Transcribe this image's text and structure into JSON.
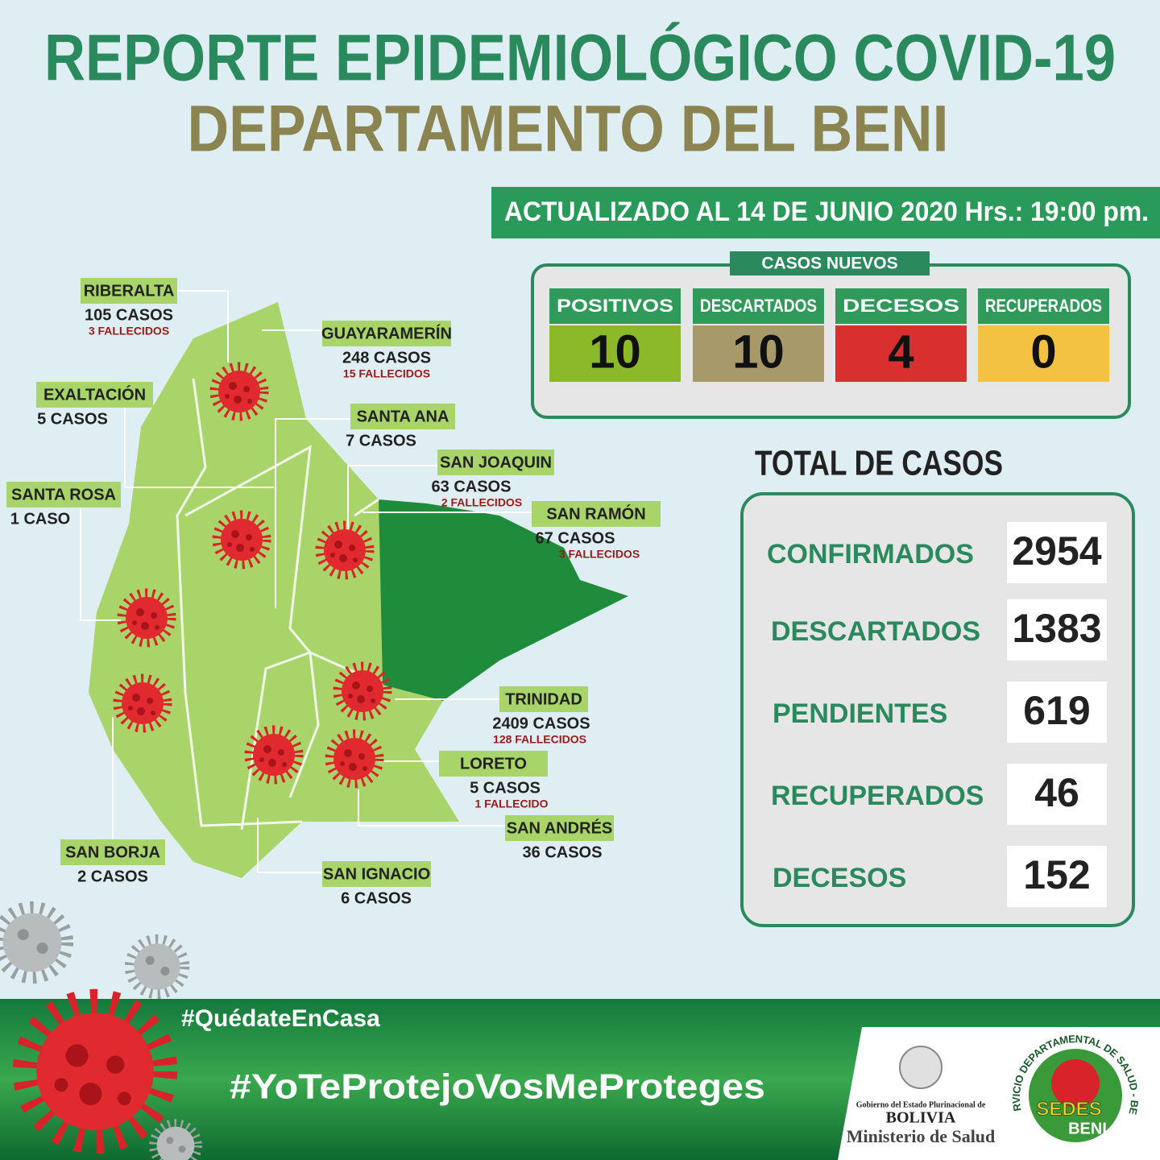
{
  "header": {
    "title": "REPORTE EPIDEMIOLÓGICO COVID-19",
    "subtitle": "DEPARTAMENTO DEL BENI",
    "updated": "ACTUALIZADO AL 14 DE JUNIO 2020 Hrs.: 19:00 pm."
  },
  "new_cases": {
    "title": "CASOS NUEVOS",
    "items": [
      {
        "label": "POSITIVOS",
        "value": 10
      },
      {
        "label": "DESCARTADOS",
        "value": 10
      },
      {
        "label": "DECESOS",
        "value": 4
      },
      {
        "label": "RECUPERADOS",
        "value": 0
      }
    ]
  },
  "total": {
    "title": "TOTAL DE CASOS",
    "items": [
      {
        "label": "CONFIRMADOS",
        "value": 2954
      },
      {
        "label": "DESCARTADOS",
        "value": 1383
      },
      {
        "label": "PENDIENTES",
        "value": 619
      },
      {
        "label": "RECUPERADOS",
        "value": 46
      },
      {
        "label": "DECESOS",
        "value": 152
      }
    ]
  },
  "map": {
    "regions": [
      {
        "name": "RIBERALTA",
        "cases": "105 CASOS",
        "deaths": "3 FALLECIDOS"
      },
      {
        "name": "GUAYARAMERÍN",
        "cases": "248 CASOS",
        "deaths": "15 FALLECIDOS"
      },
      {
        "name": "EXALTACIÓN",
        "cases": "5 CASOS"
      },
      {
        "name": "SANTA ANA",
        "cases": "7 CASOS"
      },
      {
        "name": "SAN JOAQUIN",
        "cases": "63 CASOS",
        "deaths": "2 FALLECIDOS"
      },
      {
        "name": "SAN RAMÓN",
        "cases": "67 CASOS",
        "deaths": "3 FALLECIDOS"
      },
      {
        "name": "SANTA ROSA",
        "cases": "1 CASO"
      },
      {
        "name": "TRINIDAD",
        "cases": "2409 CASOS",
        "deaths": "128 FALLECIDOS"
      },
      {
        "name": "LORETO",
        "cases": "5 CASOS",
        "deaths": "1 FALLECIDO"
      },
      {
        "name": "SAN ANDRÉS",
        "cases": "36 CASOS"
      },
      {
        "name": "SAN BORJA",
        "cases": "2 CASOS"
      },
      {
        "name": "SAN IGNACIO",
        "cases": "6 CASOS"
      }
    ]
  },
  "footer": {
    "hashtags": [
      "#QuédateEnCasa",
      "#YoTeProtejoVosMeProteges"
    ],
    "ministry": [
      "Gobierno del Estado Plurinacional de",
      "BOLIVIA",
      "Ministerio de Salud"
    ],
    "sedes": [
      "SERVICIO DEPARTAMENTAL DE SALUD - BENI",
      "SEDES",
      "BENI"
    ]
  }
}
